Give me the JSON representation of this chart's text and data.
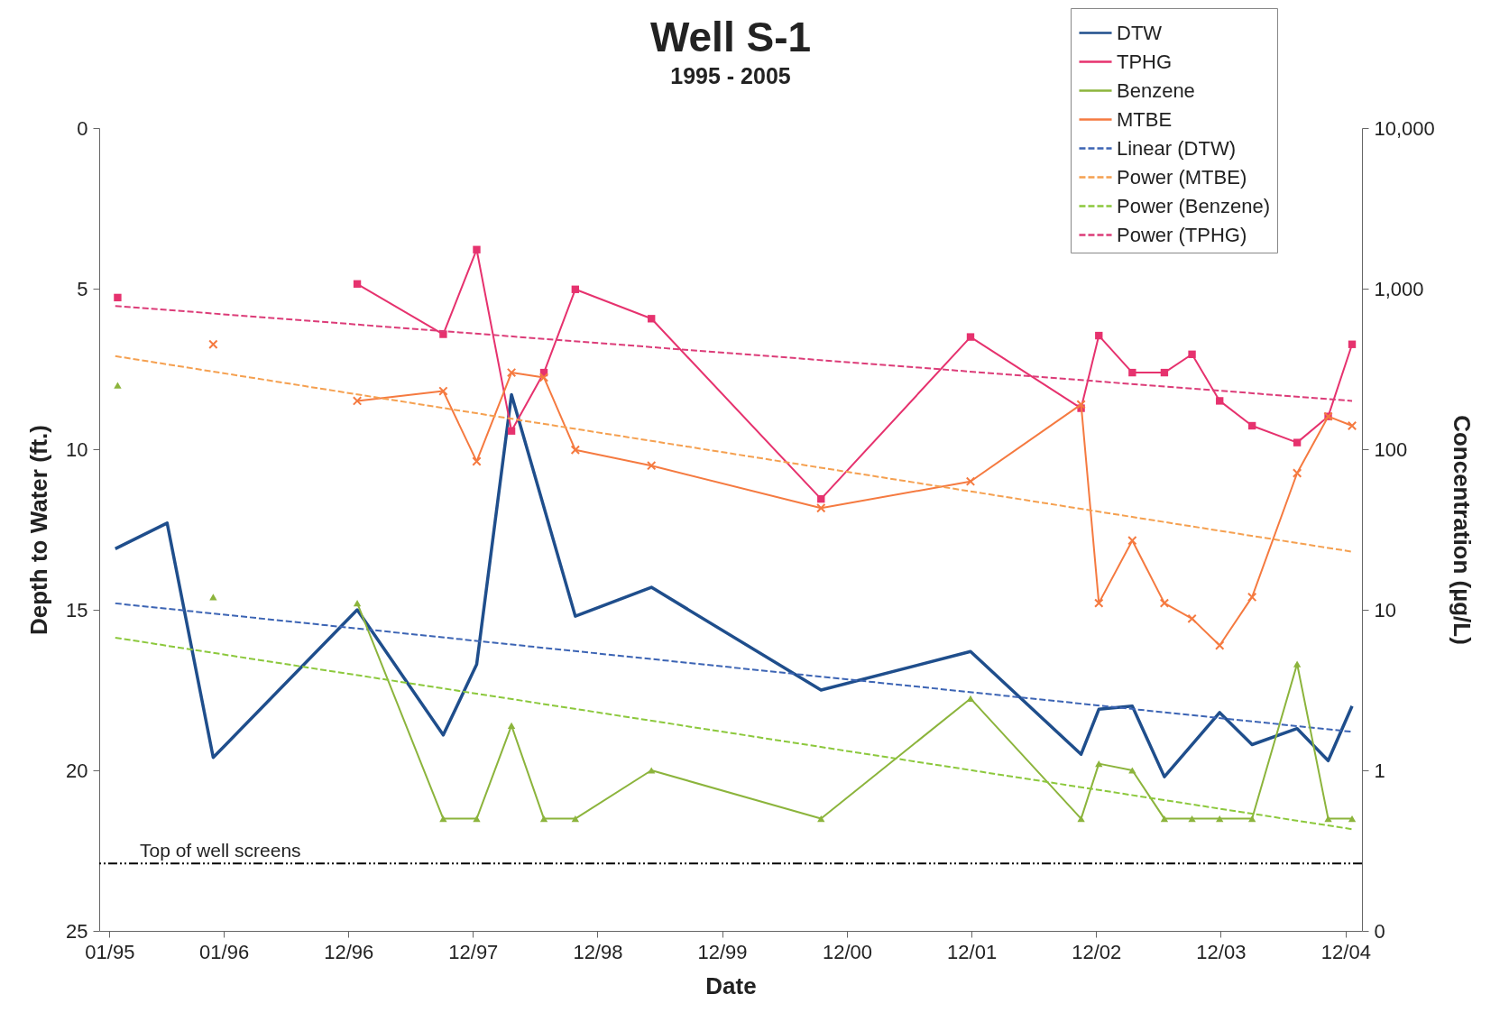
{
  "chart_data": {
    "type": "line",
    "title": "Well S-1",
    "subtitle": "1995 - 2005",
    "xlabel": "Date",
    "ylabel": "Depth to Water (ft.)",
    "y2label": "Concentration (µg/L)",
    "xlim": [
      "1995-01-01",
      "2005-02-17"
    ],
    "xticks": [
      {
        "value": "1995-01-31",
        "label": "01/95"
      },
      {
        "value": "1996-01-01",
        "label": "01/96"
      },
      {
        "value": "1996-12-31",
        "label": "12/96"
      },
      {
        "value": "1997-12-31",
        "label": "12/97"
      },
      {
        "value": "1998-12-31",
        "label": "12/98"
      },
      {
        "value": "1999-12-31",
        "label": "12/99"
      },
      {
        "value": "2000-12-31",
        "label": "12/00"
      },
      {
        "value": "2001-12-31",
        "label": "12/01"
      },
      {
        "value": "2002-12-31",
        "label": "12/02"
      },
      {
        "value": "2003-12-31",
        "label": "12/03"
      },
      {
        "value": "2004-12-31",
        "label": "12/04"
      }
    ],
    "ylim": [
      25,
      0
    ],
    "yticks": [
      0,
      5,
      10,
      15,
      20,
      25
    ],
    "y2lim": [
      0.1,
      10000
    ],
    "y2ticks": [
      {
        "value": 10000,
        "label": "10,000"
      },
      {
        "value": 1000,
        "label": "1,000"
      },
      100,
      10,
      1,
      {
        "value": 0.1,
        "label": "0"
      }
    ],
    "log": "y2",
    "legend": "top right",
    "series": [
      {
        "name": "DTW",
        "color": "#1f4e8c",
        "marker": "none",
        "line_style": "solid",
        "x": [
          "1995-02-17",
          "1995-07-19",
          "1995-12-01",
          "1997-01-26",
          "1997-10-05",
          "1998-01-11",
          "1998-04-23",
          "1998-10-27",
          "1999-06-07",
          "2000-10-16",
          "2001-12-28",
          "2002-11-17",
          "2003-01-08",
          "2003-04-16",
          "2003-07-19",
          "2003-12-28",
          "2004-04-01",
          "2004-08-11",
          "2004-11-10",
          "2005-01-19"
        ],
        "values": [
          13.1,
          12.3,
          19.6,
          15.0,
          18.9,
          16.7,
          8.3,
          15.2,
          14.3,
          17.5,
          16.3,
          19.5,
          18.1,
          18.0,
          20.2,
          18.2,
          19.2,
          18.7,
          19.7,
          18.0
        ]
      },
      {
        "name": "TPHG",
        "color": "#e6326e",
        "axis": "y2",
        "marker": "square",
        "line_style": "solid",
        "x": [
          "1995-02-24",
          "1996-06-01",
          "1997-01-26",
          "1997-10-05",
          "1998-01-11",
          "1998-04-23",
          "1998-07-27",
          "1998-10-27",
          "1999-06-07",
          "2000-10-16",
          "2001-12-28",
          "2002-11-17",
          "2003-01-08",
          "2003-04-16",
          "2003-07-19",
          "2003-10-08",
          "2003-12-28",
          "2004-04-01",
          "2004-08-11",
          "2004-11-10",
          "2005-01-19"
        ],
        "values": [
          880,
          null,
          1070,
          520,
          1750,
          130,
          300,
          990,
          650,
          49,
          500,
          180,
          510,
          300,
          300,
          390,
          200,
          140,
          110,
          160,
          450
        ]
      },
      {
        "name": "Benzene",
        "color": "#8cb43c",
        "axis": "y2",
        "marker": "triangle",
        "line_style": "solid",
        "x": [
          "1995-02-24",
          "1995-07-01",
          "1995-12-01",
          "1996-06-01",
          "1997-01-26",
          "1997-10-05",
          "1998-01-11",
          "1998-04-23",
          "1998-07-27",
          "1998-10-27",
          "1999-06-07",
          "2000-10-16",
          "2001-12-28",
          "2002-11-17",
          "2003-01-08",
          "2003-04-16",
          "2003-07-19",
          "2003-10-08",
          "2003-12-28",
          "2004-04-01",
          "2004-08-11",
          "2004-11-10",
          "2005-01-19"
        ],
        "values": [
          250,
          null,
          12,
          null,
          11,
          0.5,
          0.5,
          1.9,
          0.5,
          0.5,
          1.0,
          0.5,
          2.8,
          0.5,
          1.1,
          1.0,
          0.5,
          0.5,
          0.5,
          0.5,
          4.6,
          0.5,
          0.5
        ]
      },
      {
        "name": "MTBE",
        "color": "#f57a40",
        "axis": "y2",
        "marker": "cross",
        "line_style": "solid",
        "x": [
          "1995-12-01",
          "1996-06-01",
          "1997-01-26",
          "1997-10-05",
          "1998-01-11",
          "1998-04-23",
          "1998-07-27",
          "1998-10-27",
          "1999-06-07",
          "2000-10-16",
          "2001-12-28",
          "2002-11-17",
          "2003-01-08",
          "2003-04-16",
          "2003-07-19",
          "2003-10-08",
          "2003-12-28",
          "2004-04-01",
          "2004-08-11",
          "2004-11-10",
          "2005-01-19"
        ],
        "values": [
          450,
          null,
          200,
          230,
          84,
          300,
          280,
          99,
          79,
          43,
          63,
          190,
          11,
          27,
          11,
          8.8,
          6.0,
          12,
          71,
          160,
          140
        ]
      },
      {
        "name": "Linear (DTW)",
        "color": "#3c64b4",
        "marker": "none",
        "line_style": "dashed",
        "x": [
          "1995-02-17",
          "2005-01-19"
        ],
        "values": [
          14.8,
          18.8
        ]
      },
      {
        "name": "Power (MTBE)",
        "color": "#f5a050",
        "axis": "y2",
        "marker": "none",
        "line_style": "dashed",
        "x": [
          "1995-02-17",
          "2005-01-19"
        ],
        "values": [
          380,
          23
        ]
      },
      {
        "name": "Power (Benzene)",
        "color": "#8cc83c",
        "axis": "y2",
        "marker": "none",
        "line_style": "dashed",
        "x": [
          "1995-02-17",
          "2005-01-19"
        ],
        "values": [
          6.7,
          0.43
        ]
      },
      {
        "name": "Power (TPHG)",
        "color": "#dc3c78",
        "axis": "y2",
        "marker": "none",
        "line_style": "dashed",
        "x": [
          "1995-02-17",
          "2005-01-19"
        ],
        "values": [
          780,
          200
        ]
      }
    ],
    "ref_lines": [
      {
        "axis": "y",
        "value": 22.9,
        "label": "Top of well screens",
        "color": "#000000",
        "line_style": "dashed"
      }
    ]
  }
}
